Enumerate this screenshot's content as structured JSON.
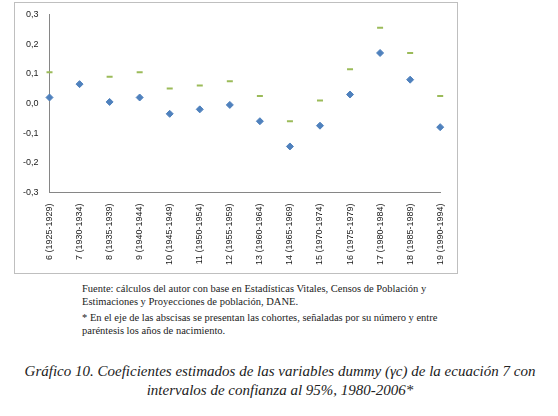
{
  "chart_data": {
    "type": "scatter",
    "title": "Gráfico 10. Coeficientes estimados de las variables dummy (γc) de la ecuación 7 con intervalos de confianza al 95%, 1980-2006*",
    "annotations": [
      "Fuente: cálculos del autor con base en Estadísticas Vitales, Censos de Población y Estimaciones y Proyecciones de población, DANE.",
      "* En el eje de las abscisas se presentan las cohortes, señaladas por su número y entre paréntesis los años de nacimiento."
    ],
    "categories": [
      "6 (1925-1929)",
      "7 (1930-1934)",
      "8 (1935-1939)",
      "9 (1940-1944)",
      "10 (1945-1949)",
      "11 (1950-1954)",
      "12 (1955-1959)",
      "13 (1960-1964)",
      "14 (1965-1969)",
      "15 (1970-1974)",
      "16 (1975-1979)",
      "17 (1980-1984)",
      "18 (1985-1989)",
      "19 (1990-1994)"
    ],
    "series": [
      {
        "color": "#4f81bd",
        "marker": "diamond",
        "values": [
          0.02,
          0.065,
          0.005,
          0.02,
          -0.035,
          -0.02,
          -0.005,
          -0.06,
          -0.145,
          -0.075,
          0.03,
          0.17,
          0.08,
          -0.08
        ]
      },
      {
        "color": "#9bbb59",
        "marker": "dash",
        "values": [
          0.105,
          null,
          0.09,
          0.105,
          0.05,
          0.06,
          0.075,
          0.025,
          -0.06,
          0.01,
          0.115,
          0.255,
          0.17,
          0.025
        ]
      }
    ],
    "ylim": [
      -0.3,
      0.3
    ],
    "yticks": [
      {
        "value": -0.3,
        "label": "-0,3"
      },
      {
        "value": -0.2,
        "label": "-0,2"
      },
      {
        "value": -0.1,
        "label": "-0,1"
      },
      {
        "value": 0,
        "label": "0,0"
      },
      {
        "value": 0.1,
        "label": "0,1"
      },
      {
        "value": 0.2,
        "label": "0,2"
      },
      {
        "value": 0.3,
        "label": "0,3"
      }
    ],
    "grid": false
  }
}
